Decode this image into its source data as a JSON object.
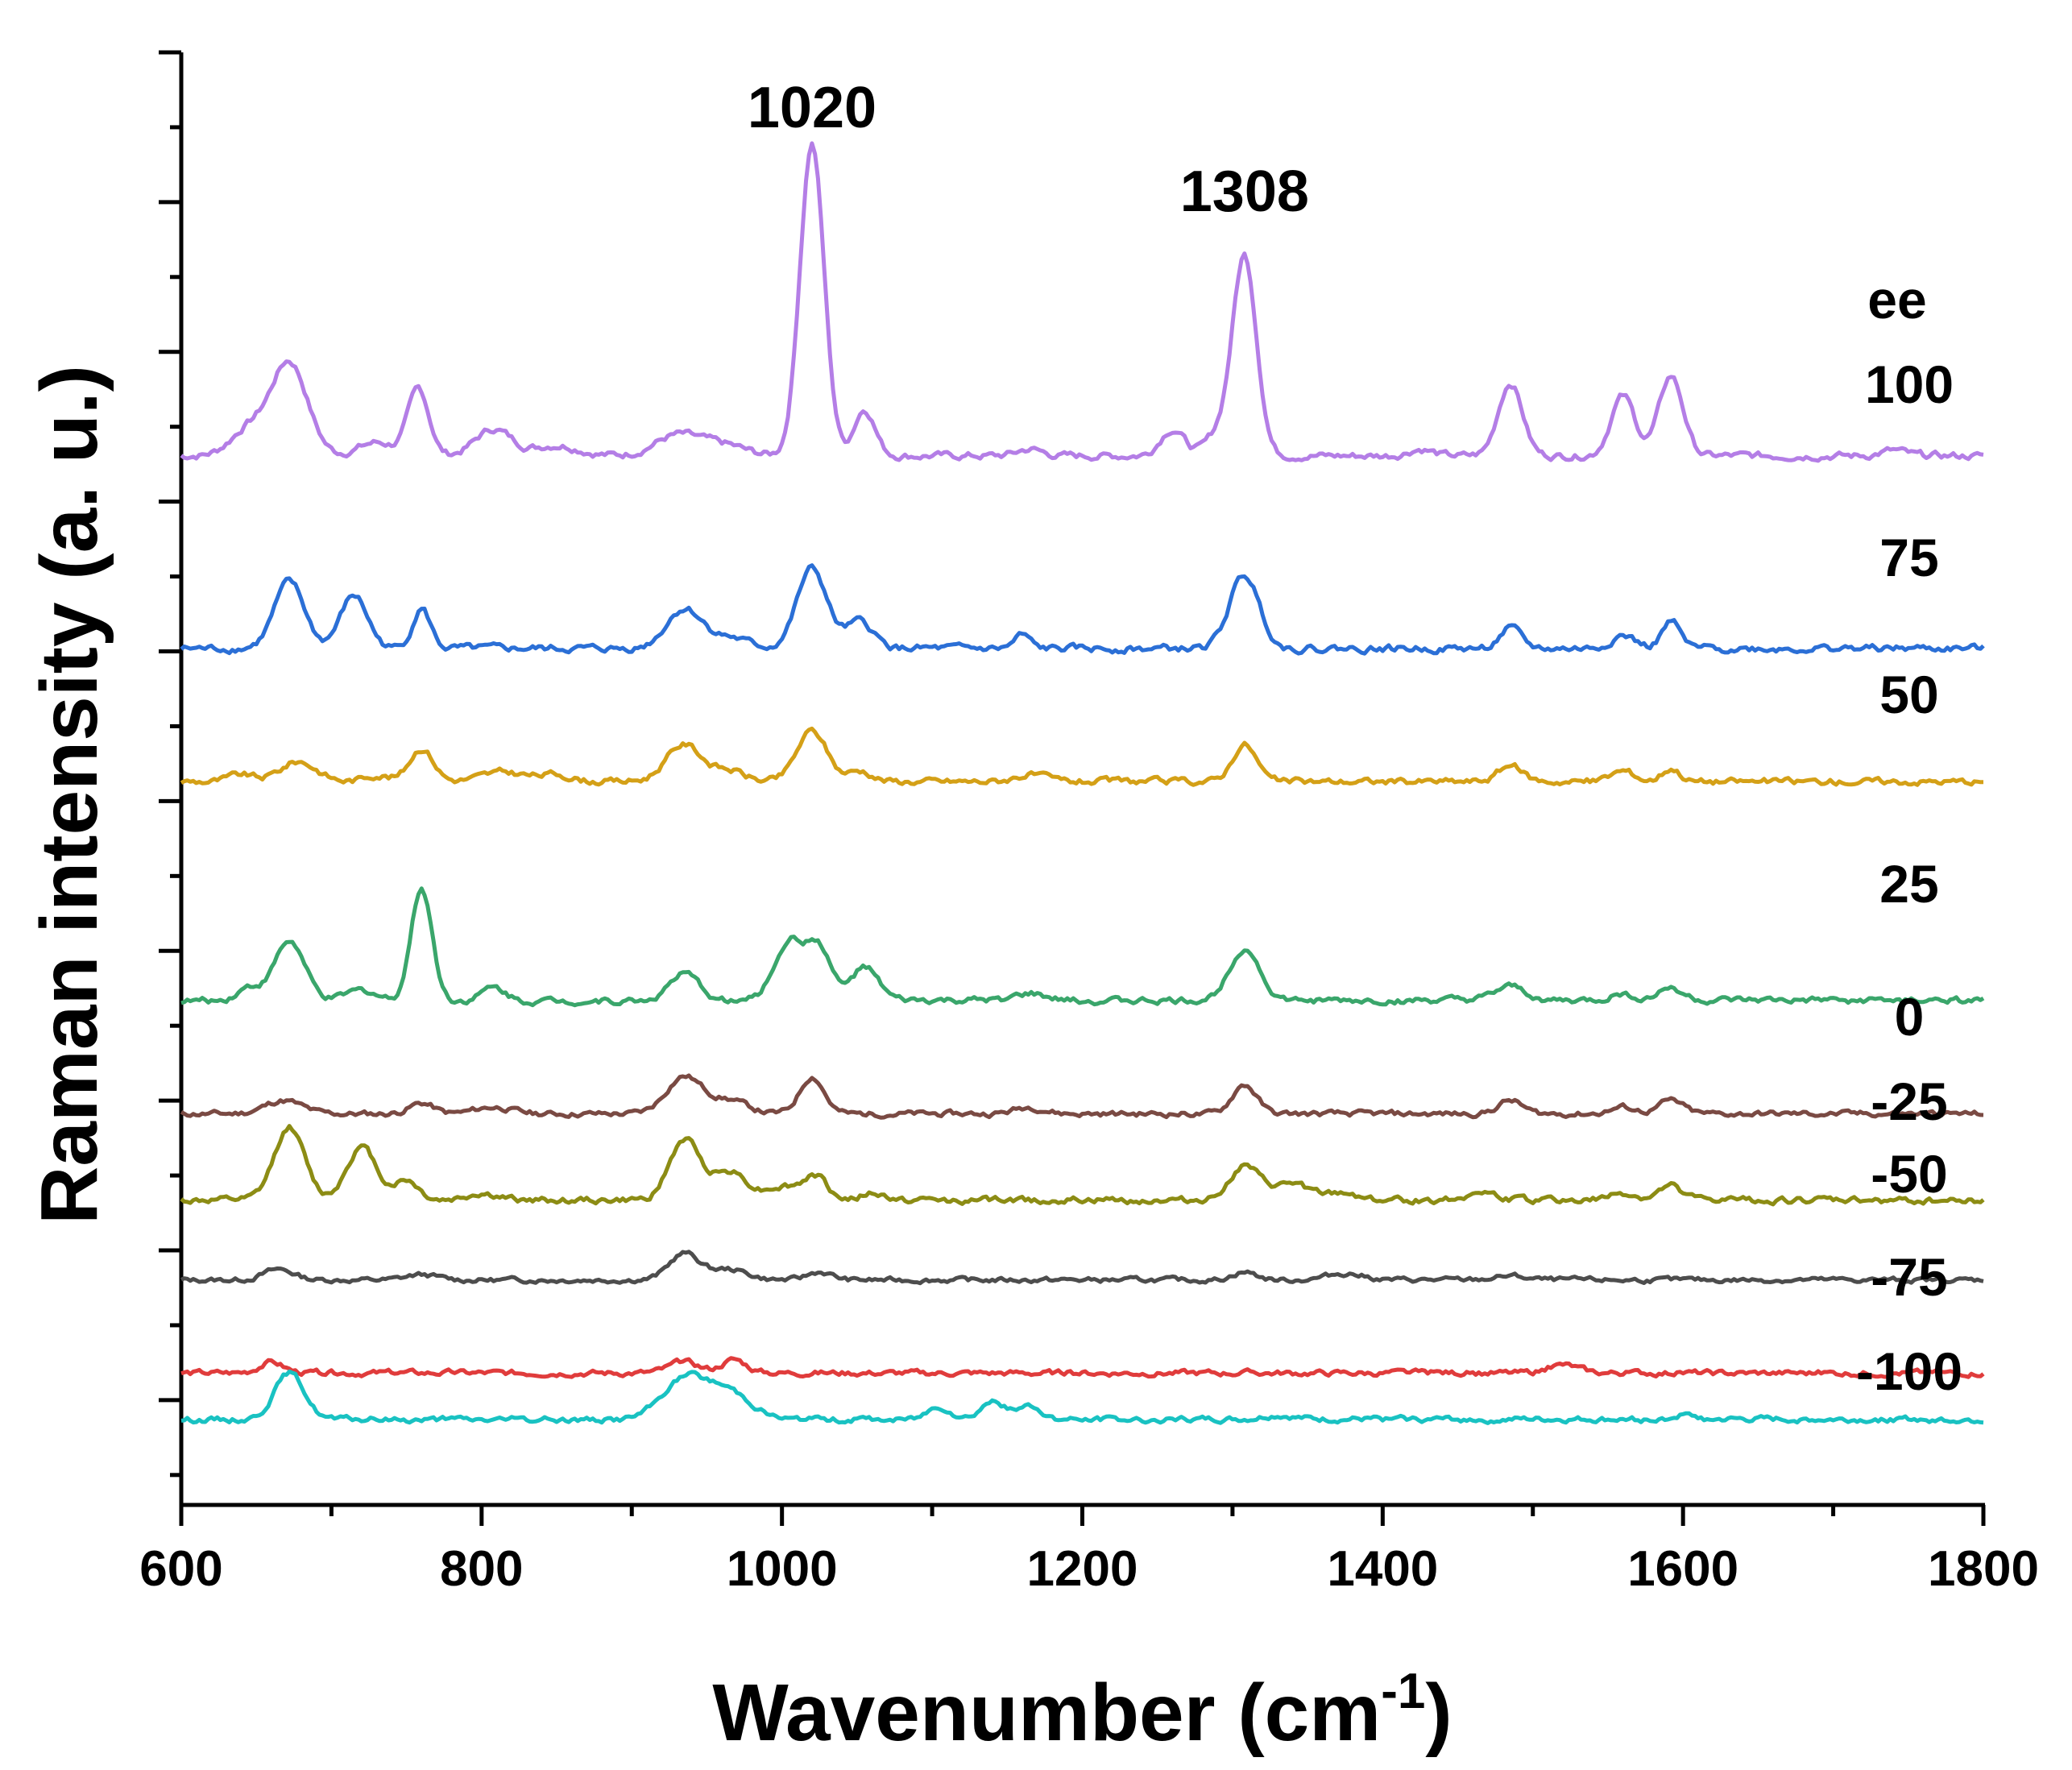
{
  "chart_data": {
    "type": "line",
    "title": "",
    "xlabel": "Wavenumber (cm",
    "xlabel_superscript": "-1",
    "xlabel_close": ")",
    "ylabel": "Raman intensity (a. u.)",
    "xlim": [
      600,
      1800
    ],
    "ylim": [
      0,
      10
    ],
    "x_ticks": [
      600,
      800,
      1000,
      1200,
      1400,
      1600,
      1800
    ],
    "x_tick_labels": [
      "600",
      "800",
      "1000",
      "1200",
      "1400",
      "1600",
      "1800"
    ],
    "y_tick_labels_shown": false,
    "grid": false,
    "legend_title": "ee",
    "annotations": [
      {
        "text": "1020",
        "x": 1020,
        "y": 9.7
      },
      {
        "text": "1308",
        "x": 1308,
        "y": 8.9
      }
    ],
    "series": [
      {
        "name": "100",
        "color": "#b47ee6",
        "baseline": 7.25,
        "peaks": [
          [
            645,
            0.2,
            12
          ],
          [
            672,
            0.7,
            12
          ],
          [
            730,
            0.1,
            12
          ],
          [
            758,
            0.5,
            7
          ],
          [
            808,
            0.2,
            12
          ],
          [
            850,
            0.08,
            15
          ],
          [
            930,
            0.15,
            15
          ],
          [
            960,
            0.08,
            15
          ],
          [
            1020,
            2.35,
            8
          ],
          [
            1055,
            0.35,
            7
          ],
          [
            1165,
            0.05,
            8
          ],
          [
            1260,
            0.2,
            8
          ],
          [
            1290,
            0.15,
            8
          ],
          [
            1308,
            1.5,
            8
          ],
          [
            1425,
            0.05,
            8
          ],
          [
            1485,
            0.55,
            8
          ],
          [
            1560,
            0.45,
            8
          ],
          [
            1592,
            0.6,
            8
          ],
          [
            1740,
            0.04,
            8
          ]
        ],
        "noise": 0.018
      },
      {
        "name": "75",
        "color": "#2b6fd6",
        "baseline": 5.8,
        "peaks": [
          [
            672,
            0.5,
            10
          ],
          [
            715,
            0.4,
            9
          ],
          [
            760,
            0.3,
            6
          ],
          [
            935,
            0.3,
            12
          ],
          [
            965,
            0.08,
            12
          ],
          [
            1020,
            0.6,
            10
          ],
          [
            1052,
            0.2,
            9
          ],
          [
            1160,
            0.1,
            5
          ],
          [
            1308,
            0.55,
            10
          ],
          [
            1485,
            0.15,
            7
          ],
          [
            1560,
            0.1,
            8
          ],
          [
            1592,
            0.2,
            6
          ]
        ],
        "noise": 0.018
      },
      {
        "name": "50",
        "color": "#d4a017",
        "baseline": 4.8,
        "peaks": [
          [
            640,
            0.05,
            8
          ],
          [
            678,
            0.15,
            12
          ],
          [
            730,
            0.05,
            8
          ],
          [
            760,
            0.25,
            8
          ],
          [
            815,
            0.07,
            15
          ],
          [
            850,
            0.05,
            10
          ],
          [
            935,
            0.28,
            12
          ],
          [
            965,
            0.08,
            10
          ],
          [
            1020,
            0.38,
            10
          ],
          [
            1052,
            0.08,
            8
          ],
          [
            1165,
            0.05,
            10
          ],
          [
            1308,
            0.28,
            8
          ],
          [
            1485,
            0.12,
            8
          ],
          [
            1560,
            0.08,
            8
          ],
          [
            1592,
            0.1,
            6
          ]
        ],
        "noise": 0.016
      },
      {
        "name": "25",
        "color": "#3aa66b",
        "baseline": 3.15,
        "peaks": [
          [
            645,
            0.1,
            8
          ],
          [
            672,
            0.45,
            10
          ],
          [
            720,
            0.08,
            10
          ],
          [
            760,
            0.85,
            7
          ],
          [
            808,
            0.1,
            8
          ],
          [
            935,
            0.2,
            10
          ],
          [
            1005,
            0.45,
            10
          ],
          [
            1025,
            0.38,
            8
          ],
          [
            1055,
            0.25,
            9
          ],
          [
            1165,
            0.05,
            10
          ],
          [
            1308,
            0.4,
            10
          ],
          [
            1485,
            0.1,
            10
          ],
          [
            1560,
            0.05,
            8
          ],
          [
            1592,
            0.1,
            8
          ]
        ],
        "noise": 0.016
      },
      {
        "name": "0",
        "color": "#7a4a43",
        "baseline": 2.3,
        "peaks": [
          [
            668,
            0.1,
            12
          ],
          [
            760,
            0.08,
            8
          ],
          [
            808,
            0.05,
            12
          ],
          [
            935,
            0.28,
            12
          ],
          [
            965,
            0.1,
            12
          ],
          [
            1020,
            0.28,
            8
          ],
          [
            1165,
            0.05,
            10
          ],
          [
            1308,
            0.22,
            8
          ],
          [
            1485,
            0.1,
            8
          ],
          [
            1560,
            0.05,
            8
          ],
          [
            1592,
            0.1,
            8
          ]
        ],
        "noise": 0.014
      },
      {
        "name": "-25",
        "color": "#8c8c14",
        "baseline": 1.65,
        "peaks": [
          [
            672,
            0.55,
            10
          ],
          [
            720,
            0.4,
            10
          ],
          [
            750,
            0.15,
            8
          ],
          [
            800,
            0.05,
            10
          ],
          [
            935,
            0.45,
            10
          ],
          [
            965,
            0.22,
            12
          ],
          [
            1000,
            0.1,
            10
          ],
          [
            1022,
            0.18,
            8
          ],
          [
            1060,
            0.05,
            8
          ],
          [
            1308,
            0.25,
            10
          ],
          [
            1340,
            0.12,
            12
          ],
          [
            1375,
            0.05,
            10
          ],
          [
            1465,
            0.06,
            10
          ],
          [
            1560,
            0.05,
            8
          ],
          [
            1592,
            0.1,
            8
          ]
        ],
        "noise": 0.016
      },
      {
        "name": "-50",
        "color": "#4d4d4d",
        "baseline": 1.05,
        "peaks": [
          [
            665,
            0.08,
            10
          ],
          [
            760,
            0.04,
            10
          ],
          [
            935,
            0.2,
            10
          ],
          [
            965,
            0.08,
            12
          ],
          [
            1025,
            0.06,
            8
          ],
          [
            1308,
            0.06,
            8
          ],
          [
            1375,
            0.05,
            12
          ],
          [
            1485,
            0.03,
            10
          ]
        ],
        "noise": 0.012
      },
      {
        "name": "-75",
        "color": "#e03c3c",
        "baseline": 0.35,
        "peaks": [
          [
            660,
            0.08,
            8
          ],
          [
            935,
            0.08,
            10
          ],
          [
            968,
            0.1,
            8
          ],
          [
            1520,
            0.06,
            10
          ]
        ],
        "noise": 0.014
      },
      {
        "name": "-100",
        "color": "#19c2c2",
        "baseline": 0.0,
        "peaks": [
          [
            672,
            0.35,
            10
          ],
          [
            935,
            0.3,
            15
          ],
          [
            965,
            0.2,
            15
          ],
          [
            1105,
            0.1,
            8
          ],
          [
            1140,
            0.14,
            8
          ],
          [
            1165,
            0.1,
            8
          ],
          [
            1330,
            0.03,
            10
          ],
          [
            1600,
            0.03,
            8
          ]
        ],
        "noise": 0.014
      }
    ]
  }
}
